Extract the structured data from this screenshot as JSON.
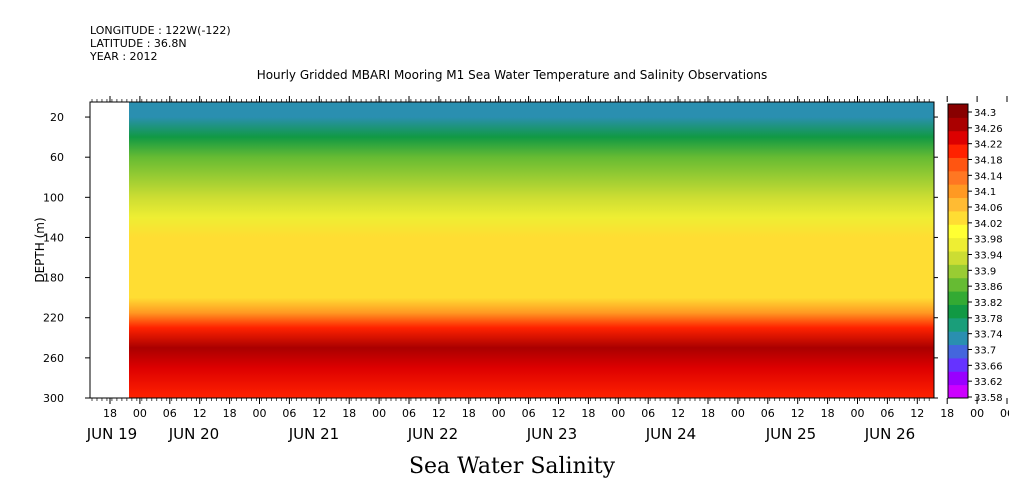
{
  "meta": {
    "longitude": "LONGITUDE : 122W(-122)",
    "latitude": "LATITUDE : 36.8N",
    "year": "YEAR : 2012"
  },
  "colors": {
    "scale": [
      "#cc00ff",
      "#9900ff",
      "#6633ff",
      "#4466dd",
      "#2a8fb0",
      "#1a9e7a",
      "#119944",
      "#33aa33",
      "#66bb33",
      "#99cc33",
      "#ccdd33",
      "#eeee33",
      "#ffff33",
      "#ffdd33",
      "#ffbb33",
      "#ff9922",
      "#ff7722",
      "#ff5511",
      "#ff2200",
      "#dd0000",
      "#aa0000",
      "#880000"
    ]
  },
  "chart_data": {
    "type": "heatmap",
    "title": "Hourly Gridded MBARI Mooring M1 Sea Water Temperature and Salinity Observations",
    "xlabel": "Sea Water Salinity",
    "ylabel": "DEPTH (m)",
    "y_ticks": [
      "20",
      "60",
      "100",
      "140",
      "180",
      "220",
      "260",
      "300"
    ],
    "ylim": [
      300,
      5
    ],
    "x_hour_ticks": [
      "18",
      "00",
      "06",
      "12",
      "18",
      "00",
      "06",
      "12",
      "18",
      "00",
      "06",
      "12",
      "18",
      "00",
      "06",
      "12",
      "18",
      "00",
      "06",
      "12",
      "18",
      "00",
      "06",
      "12",
      "18",
      "00",
      "06",
      "12",
      "18",
      "00",
      "06",
      "12",
      "18",
      "00",
      "06",
      "12"
    ],
    "x_date_labels": [
      "JUN 19",
      "JUN 20",
      "JUN 21",
      "JUN 22",
      "JUN 23",
      "JUN 24",
      "JUN 25",
      "JUN 26"
    ],
    "colorbar_labels": [
      "34.3",
      "34.26",
      "34.22",
      "34.18",
      "34.14",
      "34.1",
      "34.06",
      "34.02",
      "33.98",
      "33.94",
      "33.9",
      "33.86",
      "33.82",
      "33.78",
      "33.74",
      "33.7",
      "33.66",
      "33.62",
      "33.58"
    ],
    "profile": {
      "depth": [
        5,
        20,
        40,
        60,
        80,
        100,
        120,
        140,
        160,
        180,
        200,
        215,
        230,
        250,
        270,
        300
      ],
      "salinity": [
        33.7,
        33.73,
        33.79,
        33.84,
        33.88,
        33.93,
        33.97,
        34.02,
        34.04,
        34.02,
        34.02,
        34.1,
        34.2,
        34.25,
        34.23,
        34.18
      ]
    }
  }
}
